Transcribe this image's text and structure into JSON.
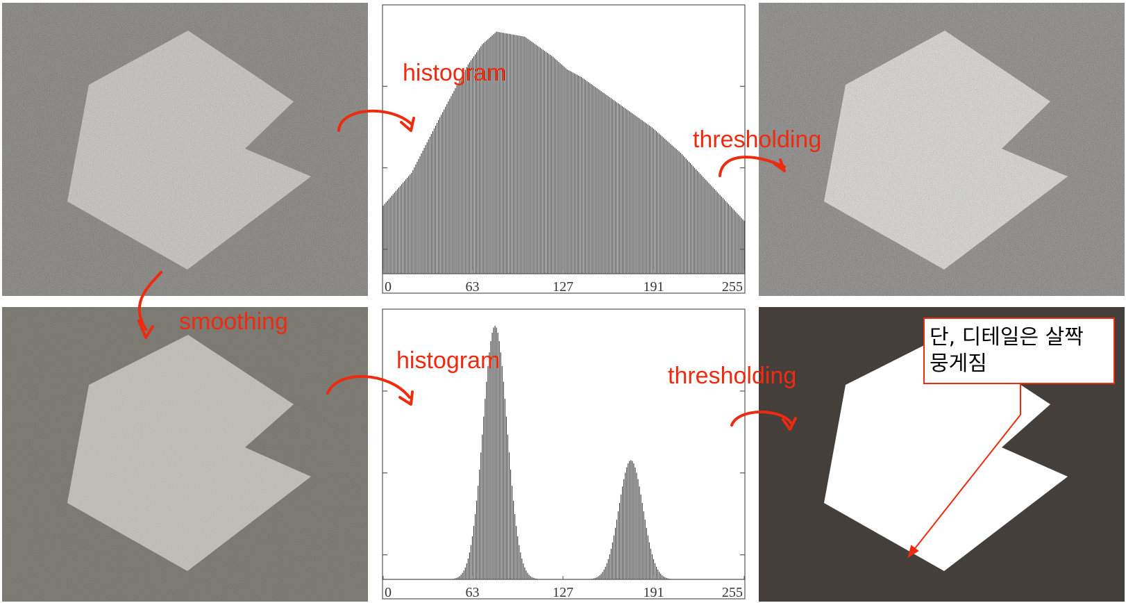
{
  "labels": {
    "histogram_top": "histogram",
    "histogram_bottom": "histogram",
    "thresholding_top": "thresholding",
    "thresholding_bottom": "thresholding",
    "smoothing": "smoothing"
  },
  "note": {
    "line1": "단, 디테일은 살짝",
    "line2": "뭉게짐"
  },
  "colors": {
    "annotation": "#ee2a0f",
    "noisy_background": "#6c6b66",
    "noisy_shape": "#c3c2bc",
    "threshold_background": "#443f3a",
    "threshold_shape": "#ffffff",
    "histogram_bars": "#333333"
  },
  "chart_data": [
    {
      "type": "bar",
      "title": "",
      "xlabel": "",
      "ylabel": "",
      "xlim": [
        0,
        255
      ],
      "xticks": [
        "0",
        "63",
        "127",
        "191",
        "255"
      ],
      "shape": "unimodal skewed",
      "x": [
        0,
        20,
        40,
        60,
        70,
        80,
        90,
        100,
        110,
        120,
        130,
        140,
        150,
        160,
        170,
        180,
        190,
        200,
        210,
        220,
        230,
        240,
        250,
        255
      ],
      "values": [
        0.27,
        0.4,
        0.62,
        0.83,
        0.91,
        0.96,
        0.95,
        0.94,
        0.9,
        0.86,
        0.81,
        0.78,
        0.74,
        0.7,
        0.66,
        0.62,
        0.58,
        0.53,
        0.48,
        0.42,
        0.36,
        0.3,
        0.24,
        0.21
      ]
    },
    {
      "type": "bar",
      "title": "",
      "xlabel": "",
      "ylabel": "",
      "xlim": [
        0,
        255
      ],
      "xticks": [
        "0",
        "63",
        "127",
        "191",
        "255"
      ],
      "shape": "bimodal",
      "peaks": [
        {
          "center": 79,
          "height": 1.0,
          "width": 8.5
        },
        {
          "center": 175,
          "height": 0.47,
          "width": 8.5
        }
      ]
    }
  ]
}
